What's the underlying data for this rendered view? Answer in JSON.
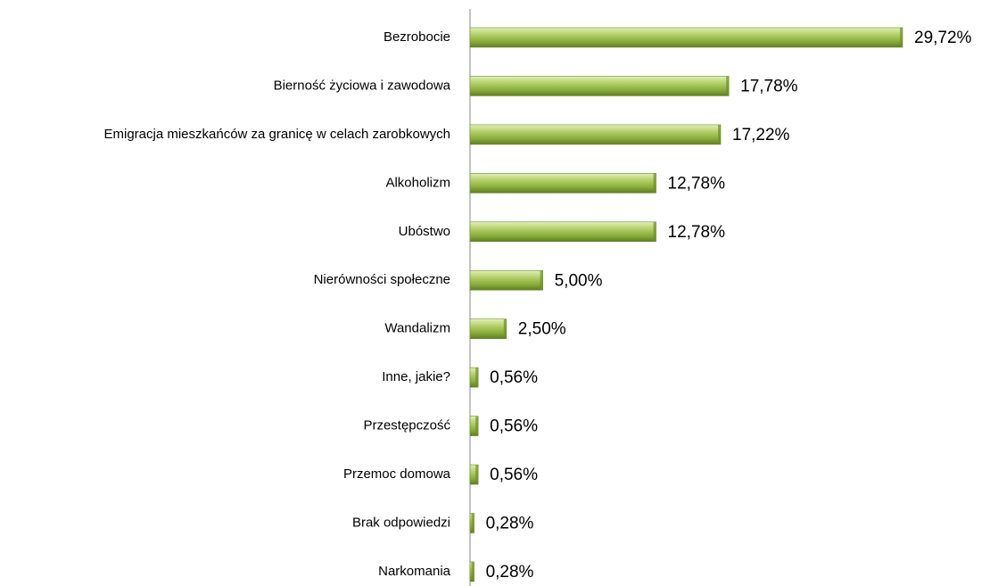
{
  "chart_data": {
    "type": "bar",
    "orientation": "horizontal",
    "categories": [
      "Bezrobocie",
      "Bierność życiowa i zawodowa",
      "Emigracja mieszkańców za granicę w celach zarobkowych",
      "Alkoholizm",
      "Ubóstwo",
      "Nierówności społeczne",
      "Wandalizm",
      "Inne, jakie?",
      "Przestępczość",
      "Przemoc domowa",
      "Brak odpowiedzi",
      "Narkomania"
    ],
    "values": [
      29.72,
      17.78,
      17.22,
      12.78,
      12.78,
      5.0,
      2.5,
      0.56,
      0.56,
      0.56,
      0.28,
      0.28
    ],
    "value_labels": [
      "29,72%",
      "17,78%",
      "17,22%",
      "12,78%",
      "12,78%",
      "5,00%",
      "2,50%",
      "0,56%",
      "0,56%",
      "0,56%",
      "0,28%",
      "0,28%"
    ],
    "color": "#9bbb59"
  }
}
